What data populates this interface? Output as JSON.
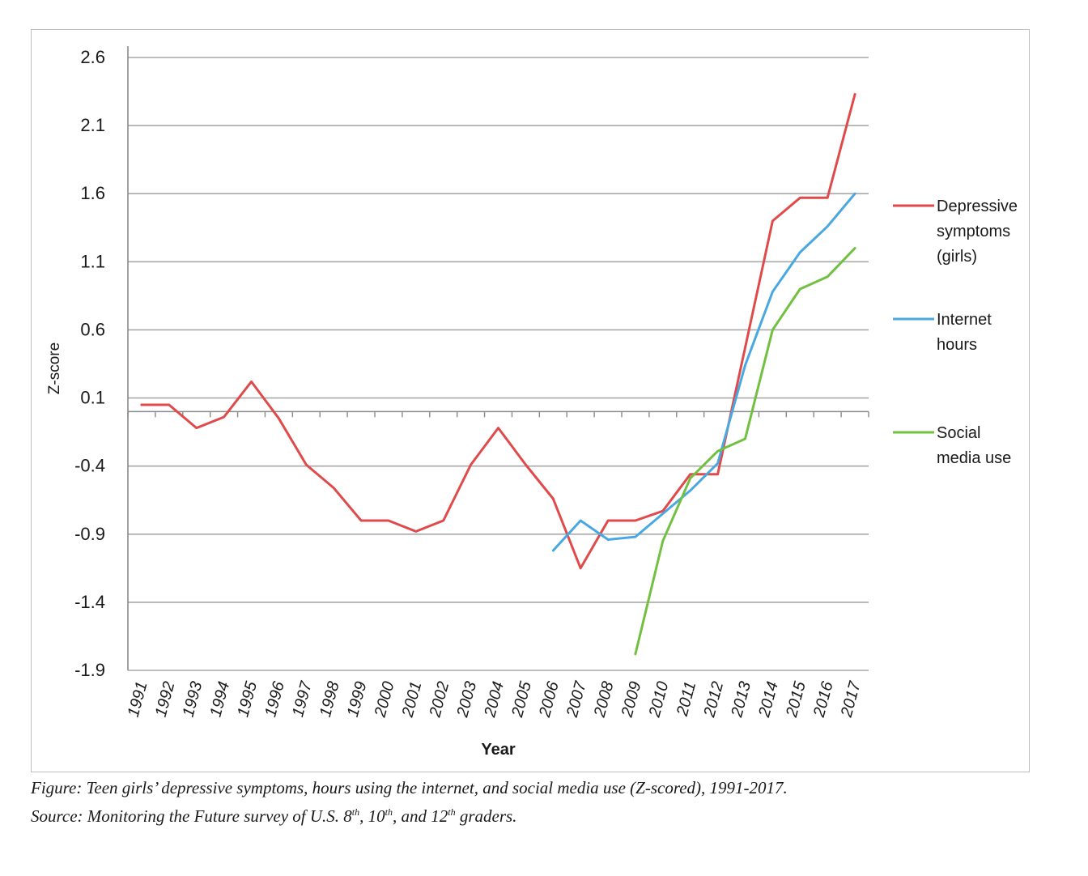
{
  "chart_data": {
    "type": "line",
    "title": "",
    "xlabel": "Year",
    "ylabel": "Z-score",
    "ylim": [
      -1.9,
      2.6
    ],
    "yticks": [
      "2.6",
      "2.1",
      "1.6",
      "1.1",
      "0.6",
      "0.1",
      "-0.4",
      "-0.9",
      "-1.4",
      "-1.9"
    ],
    "categories": [
      "1991",
      "1992",
      "1993",
      "1994",
      "1995",
      "1996",
      "1997",
      "1998",
      "1999",
      "2000",
      "2001",
      "2002",
      "2003",
      "2004",
      "2005",
      "2006",
      "2007",
      "2008",
      "2009",
      "2010",
      "2011",
      "2012",
      "2013",
      "2014",
      "2015",
      "2016",
      "2017"
    ],
    "grid": true,
    "legend_position": "right",
    "series": [
      {
        "name": "Depressive symptoms (girls)",
        "legend_lines": [
          "Depressive",
          "symptoms",
          "(girls)"
        ],
        "color": "#e04a4a",
        "values": [
          0.05,
          0.05,
          -0.12,
          -0.04,
          0.22,
          -0.05,
          -0.39,
          -0.56,
          -0.8,
          -0.8,
          -0.88,
          -0.8,
          -0.39,
          -0.12,
          -0.39,
          -0.64,
          -1.15,
          -0.8,
          -0.8,
          -0.73,
          -0.46,
          -0.46,
          0.47,
          1.4,
          1.57,
          1.57,
          2.33
        ]
      },
      {
        "name": "Internet hours",
        "legend_lines": [
          "Internet",
          "hours"
        ],
        "color": "#4aa8e0",
        "values": [
          null,
          null,
          null,
          null,
          null,
          null,
          null,
          null,
          null,
          null,
          null,
          null,
          null,
          null,
          null,
          -1.02,
          -0.8,
          -0.94,
          -0.92,
          -0.75,
          -0.58,
          -0.38,
          0.34,
          0.88,
          1.17,
          1.36,
          1.6
        ]
      },
      {
        "name": "Social media use",
        "legend_lines": [
          "Social",
          "media use"
        ],
        "color": "#72c040",
        "values": [
          null,
          null,
          null,
          null,
          null,
          null,
          null,
          null,
          null,
          null,
          null,
          null,
          null,
          null,
          null,
          null,
          null,
          null,
          -1.78,
          -0.95,
          -0.49,
          -0.29,
          -0.2,
          0.6,
          0.9,
          0.99,
          1.2
        ]
      }
    ]
  },
  "caption": {
    "line1": "Figure: Teen girls’ depressive symptoms, hours using the internet, and social media use (Z-scored), 1991-2017.",
    "line2_a": "Source: Monitoring the Future survey of U.S. 8",
    "sup1": "th",
    "line2_b": ", 10",
    "sup2": "th",
    "line2_c": ", and 12",
    "sup3": "th",
    "line2_d": " graders."
  }
}
